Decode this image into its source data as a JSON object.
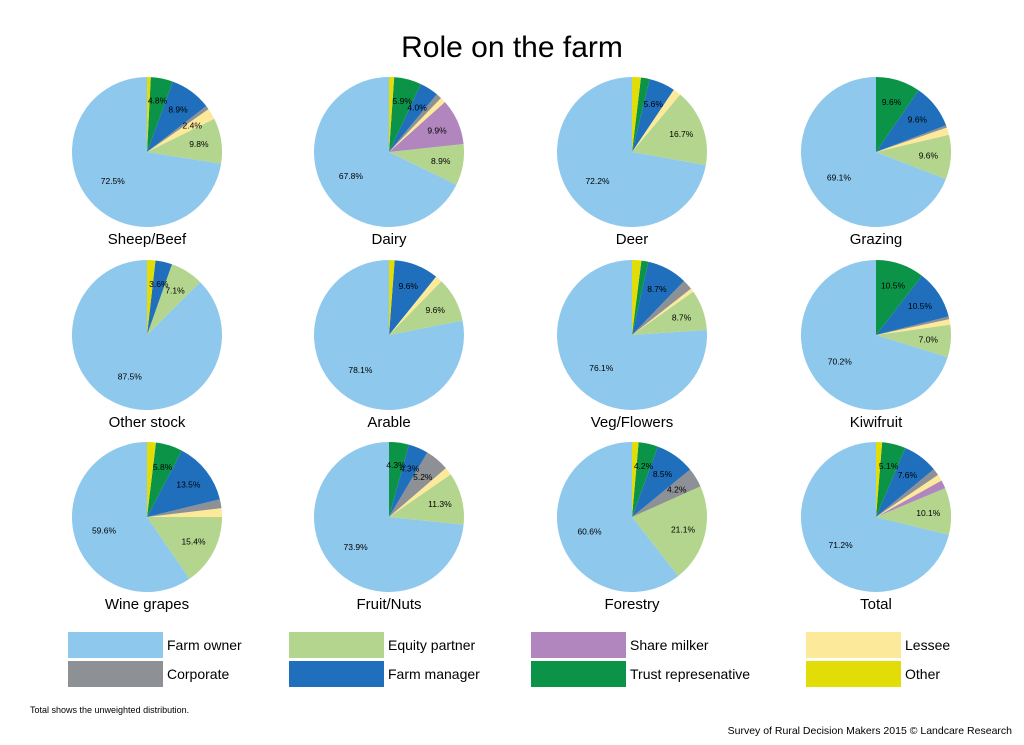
{
  "chart_data": {
    "type": "pie",
    "title": "Role on the farm",
    "categories": [
      "Farm owner",
      "Equity partner",
      "Share milker",
      "Lessee",
      "Corporate",
      "Farm manager",
      "Trust represenative",
      "Other"
    ],
    "colors": [
      "#8ec8ec",
      "#b3d58d",
      "#b186bf",
      "#fde99a",
      "#8d9094",
      "#1f6fbd",
      "#0b9447",
      "#e2dc07"
    ],
    "legend_position": "bottom",
    "pies": [
      {
        "name": "Sheep/Beef",
        "values": [
          72.5,
          9.8,
          0,
          2.4,
          0.8,
          8.9,
          4.8,
          0.8
        ],
        "labels": [
          "72.5%",
          "9.8%",
          "",
          "2.4%",
          "",
          "8.9%",
          "4.8%",
          ""
        ]
      },
      {
        "name": "Dairy",
        "values": [
          67.8,
          8.9,
          9.9,
          1.2,
          1.2,
          4.0,
          5.9,
          1.1
        ],
        "labels": [
          "67.8%",
          "8.9%",
          "9.9%",
          "",
          "",
          "4.0%",
          "5.9%",
          ""
        ]
      },
      {
        "name": "Deer",
        "values": [
          72.2,
          16.7,
          0,
          1.7,
          0,
          5.6,
          1.9,
          1.9
        ],
        "labels": [
          "72.2%",
          "16.7%",
          "",
          "",
          "",
          "5.6%",
          "",
          ""
        ]
      },
      {
        "name": "Grazing",
        "values": [
          69.1,
          9.6,
          0,
          1.6,
          0.5,
          9.6,
          9.6,
          0
        ],
        "labels": [
          "69.1%",
          "9.6%",
          "",
          "",
          "",
          "9.6%",
          "9.6%",
          ""
        ]
      },
      {
        "name": "Other stock",
        "values": [
          87.5,
          7.1,
          0,
          0,
          0,
          3.6,
          0,
          1.8
        ],
        "labels": [
          "87.5%",
          "7.1%",
          "",
          "",
          "",
          "3.6%",
          "",
          ""
        ]
      },
      {
        "name": "Arable",
        "values": [
          78.1,
          9.6,
          0,
          1.5,
          0,
          9.6,
          0,
          1.2
        ],
        "labels": [
          "78.1%",
          "9.6%",
          "",
          "",
          "",
          "9.6%",
          "",
          ""
        ]
      },
      {
        "name": "Veg/Flowers",
        "values": [
          76.1,
          8.7,
          0,
          0.8,
          2.2,
          8.7,
          1.5,
          2.0
        ],
        "labels": [
          "76.1%",
          "8.7%",
          "",
          "",
          "",
          "8.7%",
          "",
          ""
        ]
      },
      {
        "name": "Kiwifruit",
        "values": [
          70.2,
          7.0,
          0,
          1.2,
          0.6,
          10.5,
          10.5,
          0
        ],
        "labels": [
          "70.2%",
          "7.0%",
          "",
          "",
          "",
          "10.5%",
          "10.5%",
          ""
        ]
      },
      {
        "name": "Wine grapes",
        "values": [
          59.6,
          15.4,
          0,
          1.9,
          1.9,
          13.5,
          5.8,
          1.9
        ],
        "labels": [
          "59.6%",
          "15.4%",
          "",
          "",
          "",
          "13.5%",
          "5.8%",
          ""
        ]
      },
      {
        "name": "Fruit/Nuts",
        "values": [
          73.9,
          11.3,
          0,
          1.7,
          5.2,
          4.3,
          4.3,
          0
        ],
        "labels": [
          "73.9%",
          "11.3%",
          "",
          "",
          "5.2%",
          "4.3%",
          "4.3%",
          ""
        ]
      },
      {
        "name": "Forestry",
        "values": [
          60.6,
          21.1,
          0,
          0,
          4.2,
          8.5,
          4.2,
          1.4
        ],
        "labels": [
          "60.6%",
          "21.1%",
          "",
          "",
          "4.2%",
          "8.5%",
          "4.2%",
          ""
        ]
      },
      {
        "name": "Total",
        "values": [
          71.2,
          10.1,
          1.8,
          1.4,
          1.5,
          7.6,
          5.1,
          1.3
        ],
        "labels": [
          "71.2%",
          "10.1%",
          "",
          "",
          "",
          "7.6%",
          "5.1%",
          ""
        ]
      }
    ]
  },
  "footnote": "Total shows the unweighted distribution.",
  "source": "Survey of Rural Decision Makers 2015 © Landcare Research"
}
